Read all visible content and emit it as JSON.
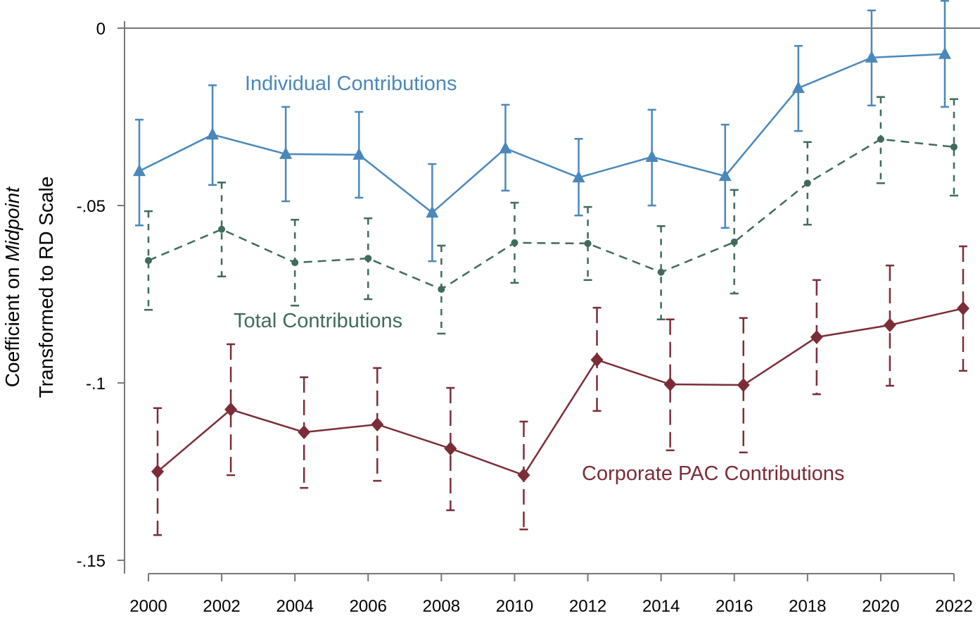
{
  "chart_data": {
    "type": "line",
    "title": "",
    "xlabel": "",
    "ylabel_line1_prefix": "Coefficient on ",
    "ylabel_line1_italic": "Midpoint",
    "ylabel_line2": "Transformed to RD Scale",
    "ylim": [
      -0.15,
      0
    ],
    "xlim": [
      2000,
      2022
    ],
    "grid": false,
    "legend": "inline labels",
    "x": [
      2000,
      2002,
      2004,
      2006,
      2008,
      2010,
      2012,
      2014,
      2016,
      2018,
      2020,
      2022
    ],
    "x_tick_labels": [
      "2000",
      "2002",
      "2004",
      "2006",
      "2008",
      "2010",
      "2012",
      "2014",
      "2016",
      "2018",
      "2020",
      "2022"
    ],
    "y_ticks": [
      0,
      -0.05,
      -0.1,
      -0.15
    ],
    "y_tick_labels": [
      "0",
      "-.05",
      "-.1",
      "-.15"
    ],
    "series": [
      {
        "name": "Individual Contributions",
        "color": "#4a88bb",
        "marker": "triangle",
        "values": [
          -0.0403,
          -0.03,
          -0.0355,
          -0.0357,
          -0.052,
          -0.0339,
          -0.0421,
          -0.0363,
          -0.0417,
          -0.0169,
          -0.0083,
          -0.0073
        ],
        "ci_upper": [
          -0.0258,
          -0.0161,
          -0.0222,
          -0.0236,
          -0.0383,
          -0.0216,
          -0.0312,
          -0.023,
          -0.0272,
          -0.005,
          0.005,
          0.0077
        ],
        "ci_lower": [
          -0.0556,
          -0.0442,
          -0.0488,
          -0.0478,
          -0.0657,
          -0.0458,
          -0.0528,
          -0.05,
          -0.0563,
          -0.029,
          -0.0218,
          -0.0222
        ]
      },
      {
        "name": "Total Contributions",
        "color": "#3f6b5c",
        "marker": "circle",
        "values": [
          -0.0655,
          -0.0567,
          -0.0661,
          -0.0649,
          -0.0736,
          -0.0605,
          -0.0607,
          -0.0688,
          -0.0603,
          -0.0437,
          -0.0313,
          -0.0335
        ],
        "ci_upper": [
          -0.0516,
          -0.0435,
          -0.054,
          -0.0536,
          -0.0613,
          -0.0492,
          -0.0504,
          -0.0558,
          -0.0456,
          -0.0321,
          -0.0194,
          -0.02
        ],
        "ci_lower": [
          -0.0794,
          -0.07,
          -0.0782,
          -0.0764,
          -0.0861,
          -0.0718,
          -0.071,
          -0.0821,
          -0.0748,
          -0.0554,
          -0.0437,
          -0.0472
        ]
      },
      {
        "name": "Corporate PAC Contributions",
        "color": "#7b2d37",
        "marker": "diamond",
        "values": [
          -0.125,
          -0.1075,
          -0.1139,
          -0.1117,
          -0.1185,
          -0.126,
          -0.0935,
          -0.1004,
          -0.1006,
          -0.0871,
          -0.0837,
          -0.079
        ],
        "ci_upper": [
          -0.1071,
          -0.0891,
          -0.0984,
          -0.0958,
          -0.1014,
          -0.1109,
          -0.0788,
          -0.0821,
          -0.0817,
          -0.071,
          -0.0669,
          -0.0615
        ],
        "ci_lower": [
          -0.1429,
          -0.126,
          -0.1296,
          -0.1276,
          -0.1359,
          -0.1413,
          -0.1079,
          -0.119,
          -0.1196,
          -0.1032,
          -0.1008,
          -0.0966
        ]
      }
    ]
  }
}
